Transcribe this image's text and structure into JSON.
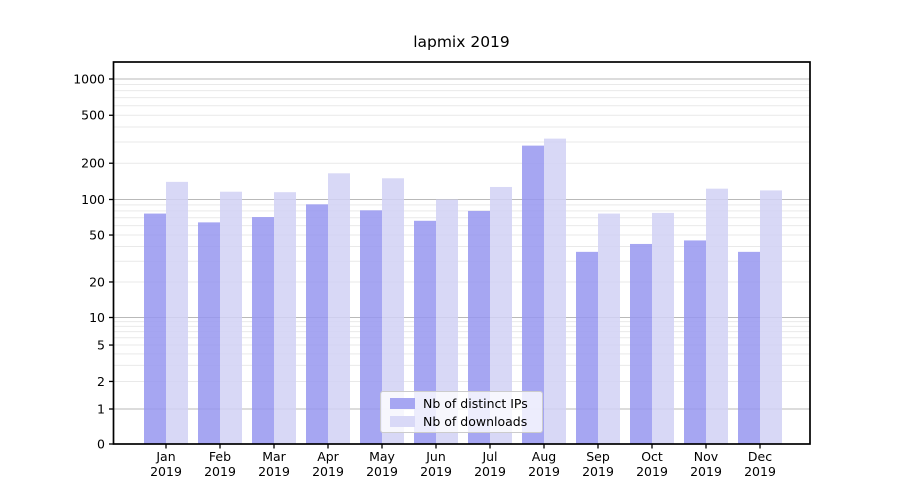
{
  "title": "lapmix 2019",
  "colors": {
    "ips_bar": "#9696f0",
    "downloads_bar": "#d1d1f5",
    "ips_swatch": "#a6a6f2",
    "downloads_swatch": "#d9d9f7",
    "grid_major": "#b9b9b9",
    "grid_minor": "#e9e9e9",
    "axis": "#000000",
    "text": "#000000",
    "legend_border": "#cccccc"
  },
  "chart_data": {
    "type": "bar",
    "title": "lapmix 2019",
    "categories": [
      "Jan",
      "Feb",
      "Mar",
      "Apr",
      "May",
      "Jun",
      "Jul",
      "Aug",
      "Sep",
      "Oct",
      "Nov",
      "Dec"
    ],
    "xtick_labels": [
      [
        "Jan",
        "2019"
      ],
      [
        "Feb",
        "2019"
      ],
      [
        "Mar",
        "2019"
      ],
      [
        "Apr",
        "2019"
      ],
      [
        "May",
        "2019"
      ],
      [
        "Jun",
        "2019"
      ],
      [
        "Jul",
        "2019"
      ],
      [
        "Aug",
        "2019"
      ],
      [
        "Sep",
        "2019"
      ],
      [
        "Oct",
        "2019"
      ],
      [
        "Nov",
        "2019"
      ],
      [
        "Dec",
        "2019"
      ]
    ],
    "series": [
      {
        "name": "Nb of distinct IPs",
        "values": [
          76,
          64,
          71,
          91,
          81,
          66,
          80,
          280,
          36,
          42,
          45,
          36
        ]
      },
      {
        "name": "Nb of downloads",
        "values": [
          140,
          116,
          115,
          165,
          150,
          100,
          127,
          320,
          76,
          77,
          123,
          119
        ]
      }
    ],
    "xlabel": "",
    "ylabel": "",
    "yscale": "symlog",
    "yticks": [
      0,
      1,
      2,
      5,
      10,
      20,
      50,
      100,
      200,
      500,
      1000
    ],
    "ylim": [
      0,
      1500
    ],
    "grid": true,
    "legend_position": "lower center"
  }
}
